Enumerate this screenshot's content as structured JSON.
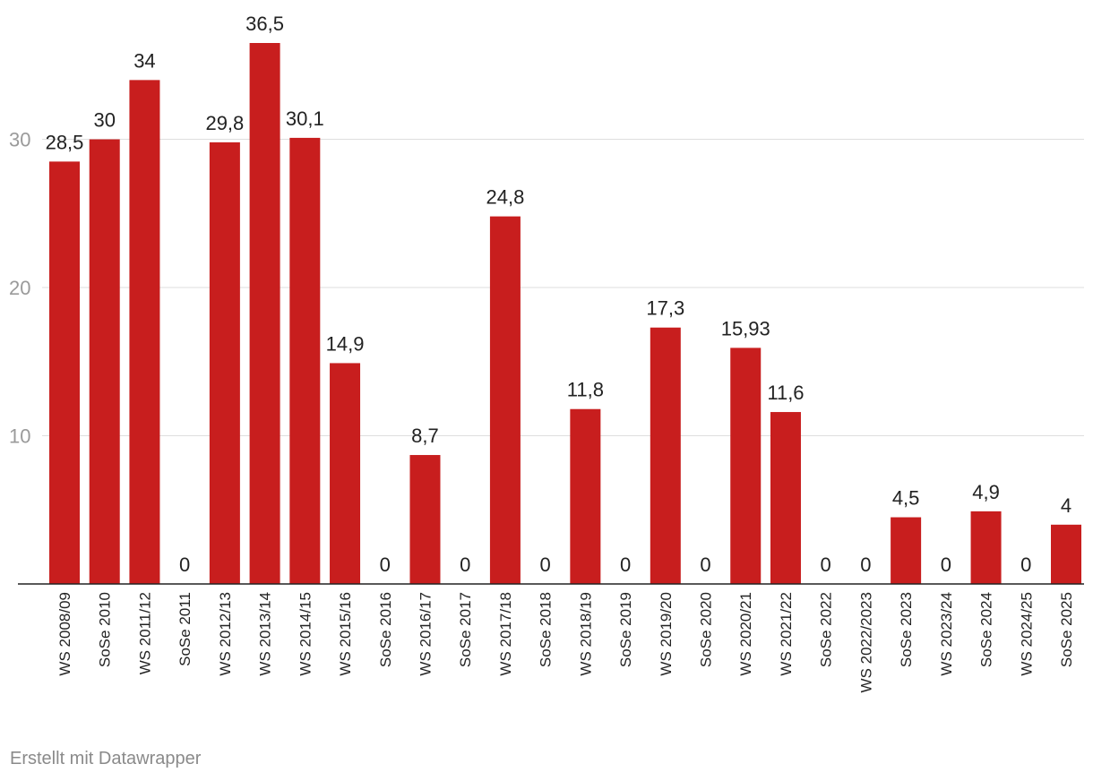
{
  "chart_data": {
    "type": "bar",
    "title": "",
    "xlabel": "",
    "ylabel": "",
    "ylim": [
      0,
      36.5
    ],
    "yticks": [
      10,
      20,
      30
    ],
    "grid": true,
    "bar_color": "#c81e1e",
    "categories": [
      "WS 2008/09",
      "SoSe 2010",
      "WS 2011/12",
      "SoSe 2011",
      "WS 2012/13",
      "WS 2013/14",
      "WS 2014/15",
      "WS 2015/16",
      "SoSe 2016",
      "WS 2016/17",
      "SoSe 2017",
      "WS 2017/18",
      "SoSe 2018",
      "WS 2018/19",
      "SoSe 2019",
      "WS 2019/20",
      "SoSe 2020",
      "WS 2020/21",
      "WS 2021/22",
      "SoSe 2022",
      "WS 2022/2023",
      "SoSe 2023",
      "WS 2023/24",
      "SoSe 2024",
      "WS 2024/25",
      "SoSe 2025"
    ],
    "values": [
      28.5,
      30,
      34,
      0,
      29.8,
      36.5,
      30.1,
      14.9,
      0,
      8.7,
      0,
      24.8,
      0,
      11.8,
      0,
      17.3,
      0,
      15.93,
      11.6,
      0,
      0,
      4.5,
      0,
      4.9,
      0,
      4
    ],
    "value_labels": [
      "28,5",
      "30",
      "34",
      "0",
      "29,8",
      "36,5",
      "30,1",
      "14,9",
      "0",
      "8,7",
      "0",
      "24,8",
      "0",
      "11,8",
      "0",
      "17,3",
      "0",
      "15,93",
      "11,6",
      "0",
      "0",
      "4,5",
      "0",
      "4,9",
      "0",
      "4"
    ]
  },
  "footer": {
    "credit": "Erstellt mit Datawrapper"
  }
}
